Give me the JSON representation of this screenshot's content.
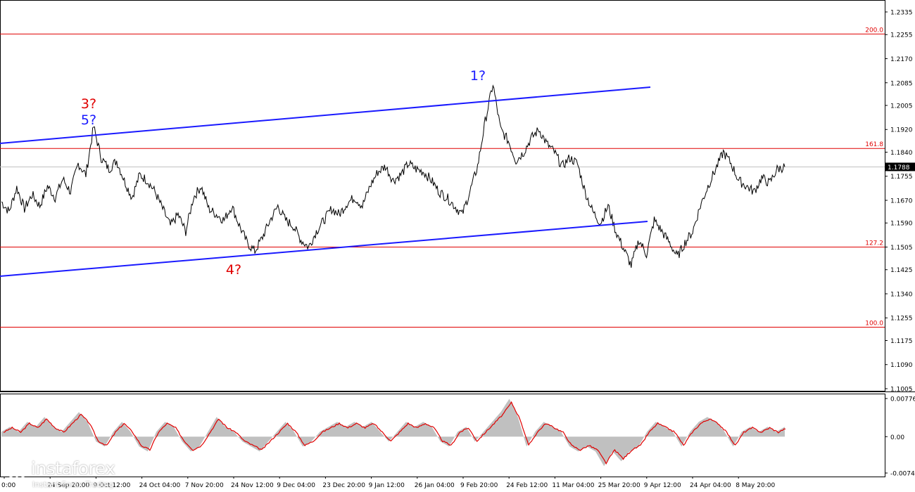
{
  "chart_data": [
    {
      "type": "line",
      "ylim": [
        1.1005,
        1.2335
      ],
      "y_ticks": [
        "1.2335",
        "1.2255",
        "1.2170",
        "1.2085",
        "1.2005",
        "1.1920",
        "1.1840",
        "1.1755",
        "1.1670",
        "1.1590",
        "1.1505",
        "1.1425",
        "1.1340",
        "1.1255",
        "1.1175",
        "1.1090",
        "1.1005"
      ],
      "x_labels": [
        "0:00",
        "24 Sep 20:00",
        "9 Oct 12:00",
        "24 Oct 04:00",
        "7 Nov 20:00",
        "24 Nov 12:00",
        "9 Dec 04:00",
        "23 Dec 20:00",
        "9 Jan 12:00",
        "26 Jan 04:00",
        "9 Feb 20:00",
        "24 Feb 12:00",
        "11 Mar 04:00",
        "25 Mar 20:00",
        "9 Apr 12:00",
        "24 Apr 04:00",
        "8 May 20:00"
      ],
      "current_price": "1.1788",
      "price_series": [
        1.1665,
        1.163,
        1.1715,
        1.164,
        1.169,
        1.165,
        1.172,
        1.168,
        1.1745,
        1.17,
        1.18,
        1.176,
        1.193,
        1.182,
        1.178,
        1.181,
        1.174,
        1.168,
        1.176,
        1.174,
        1.17,
        1.164,
        1.158,
        1.162,
        1.156,
        1.168,
        1.172,
        1.164,
        1.162,
        1.16,
        1.165,
        1.158,
        1.152,
        1.149,
        1.154,
        1.16,
        1.165,
        1.16,
        1.158,
        1.153,
        1.1505,
        1.156,
        1.16,
        1.164,
        1.162,
        1.166,
        1.168,
        1.165,
        1.172,
        1.177,
        1.179,
        1.174,
        1.176,
        1.18,
        1.178,
        1.177,
        1.174,
        1.17,
        1.168,
        1.165,
        1.162,
        1.17,
        1.179,
        1.195,
        1.208,
        1.192,
        1.188,
        1.181,
        1.184,
        1.189,
        1.192,
        1.187,
        1.184,
        1.179,
        1.182,
        1.18,
        1.17,
        1.163,
        1.159,
        1.165,
        1.156,
        1.15,
        1.144,
        1.153,
        1.148,
        1.16,
        1.156,
        1.152,
        1.147,
        1.152,
        1.156,
        1.165,
        1.172,
        1.178,
        1.184,
        1.18,
        1.174,
        1.172,
        1.17,
        1.175,
        1.173,
        1.178,
        1.1788
      ],
      "oscillator": {
        "ylim": [
          -0.0074,
          0.00776
        ],
        "y_ticks": [
          "0.00776",
          "0.00",
          "-0.0074"
        ],
        "series": [
          0.001,
          0.002,
          0.001,
          0.003,
          0.002,
          0.004,
          0.002,
          0.001,
          0.003,
          0.005,
          0.003,
          -0.001,
          -0.002,
          0.001,
          0.003,
          0.001,
          -0.002,
          -0.003,
          0.001,
          0.003,
          0.002,
          -0.001,
          -0.003,
          -0.002,
          0.001,
          0.004,
          0.002,
          0.001,
          -0.001,
          -0.002,
          -0.003,
          -0.001,
          0.001,
          0.003,
          0.001,
          -0.002,
          -0.001,
          0.001,
          0.002,
          0.003,
          0.002,
          0.003,
          0.002,
          0.003,
          0.001,
          -0.001,
          0.001,
          0.003,
          0.002,
          0.003,
          0.002,
          -0.001,
          -0.002,
          0.001,
          0.002,
          -0.001,
          0.001,
          0.003,
          0.005,
          0.0077,
          0.004,
          -0.002,
          0.001,
          0.003,
          0.002,
          0.001,
          -0.002,
          -0.003,
          -0.002,
          -0.003,
          -0.006,
          -0.003,
          -0.005,
          -0.003,
          -0.002,
          0.001,
          0.003,
          0.002,
          0.001,
          -0.002,
          0.001,
          0.003,
          0.004,
          0.003,
          0.001,
          -0.002,
          0.001,
          0.002,
          0.001,
          0.002,
          0.001,
          0.002
        ]
      },
      "fib_levels": [
        {
          "label": "200.0",
          "value": 1.2257
        },
        {
          "label": "161.8",
          "value": 1.1853
        },
        {
          "label": "127.2",
          "value": 1.1505
        },
        {
          "label": "100.0",
          "value": 1.1222
        }
      ],
      "wave_labels": [
        {
          "text": "3?",
          "color": "#e00000"
        },
        {
          "text": "5?",
          "color": "#1a1aff"
        },
        {
          "text": "1?",
          "color": "#1a1aff"
        },
        {
          "text": "4?",
          "color": "#e00000"
        }
      ]
    }
  ],
  "branding": {
    "logo_text": "instaforex",
    "logo_sub": "Instant Forex Trading"
  },
  "colors": {
    "fib": "#e00000",
    "channel": "#1a1aff",
    "price": "#000000",
    "oscillator_hist": "#c0c0c0",
    "oscillator_line": "#e00000"
  }
}
